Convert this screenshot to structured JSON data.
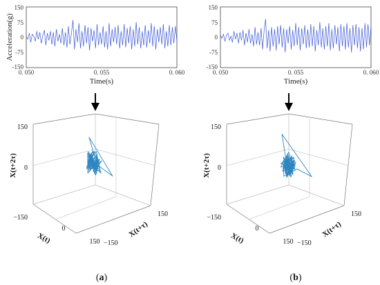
{
  "colors": {
    "series": "#3b57d6",
    "trajectory": "#2e86c1",
    "frame": "#555555",
    "grid": "#bbbbbb"
  },
  "panels": [
    {
      "caption_pre": "(",
      "caption_letter": "a",
      "caption_post": ")"
    },
    {
      "caption_pre": "(",
      "caption_letter": "b",
      "caption_post": ")"
    }
  ],
  "chart_data": [
    {
      "type": "line",
      "panel": "a",
      "ylabel": "Acceleration(g)",
      "xlabel": "Time(s)",
      "xlim": [
        0.05,
        0.06
      ],
      "ylim": [
        -150,
        150
      ],
      "xticks": [
        "0. 050",
        "0. 055",
        "0. 060"
      ],
      "yticks": [
        "150",
        "75",
        "0",
        "-75",
        "-150"
      ],
      "series": [
        {
          "x": [
            0.05,
            0.0501,
            0.0502,
            0.0503,
            0.0504,
            0.0505,
            0.0506,
            0.0507,
            0.0508,
            0.0509,
            0.051,
            0.0511,
            0.0512,
            0.0513,
            0.0514,
            0.0515,
            0.0516,
            0.0517,
            0.0518,
            0.0519,
            0.052,
            0.0521,
            0.0522,
            0.0523,
            0.0524,
            0.0525,
            0.0526,
            0.0527,
            0.0528,
            0.0529,
            0.053,
            0.0531,
            0.0532,
            0.0533,
            0.0534,
            0.0535,
            0.0536,
            0.0537,
            0.0538,
            0.0539,
            0.054,
            0.0541,
            0.0542,
            0.0543,
            0.0544,
            0.0545,
            0.0546,
            0.0547,
            0.0548,
            0.0549,
            0.055,
            0.0551,
            0.0552,
            0.0553,
            0.0554,
            0.0555,
            0.0556,
            0.0557,
            0.0558,
            0.0559,
            0.056,
            0.0561,
            0.0562,
            0.0563,
            0.0564,
            0.0565,
            0.0566,
            0.0567,
            0.0568,
            0.0569,
            0.057,
            0.0571,
            0.0572,
            0.0573,
            0.0574,
            0.0575,
            0.0576,
            0.0577,
            0.0578,
            0.0579,
            0.058,
            0.0581,
            0.0582,
            0.0583,
            0.0584,
            0.0585,
            0.0586,
            0.0587,
            0.0588,
            0.0589,
            0.059,
            0.0591,
            0.0592,
            0.0593,
            0.0594,
            0.0595,
            0.0596,
            0.0597,
            0.0598,
            0.0599,
            0.06
          ],
          "y": [
            5,
            -10,
            20,
            -25,
            15,
            5,
            -20,
            30,
            -10,
            25,
            -30,
            10,
            35,
            -40,
            20,
            -15,
            30,
            -35,
            25,
            -45,
            40,
            -20,
            15,
            -30,
            45,
            -40,
            25,
            -50,
            55,
            -35,
            20,
            85,
            -60,
            40,
            -25,
            70,
            -55,
            30,
            -45,
            60,
            -30,
            50,
            -65,
            45,
            -20,
            35,
            -55,
            65,
            -40,
            25,
            -35,
            55,
            -50,
            30,
            -60,
            70,
            -45,
            40,
            -25,
            50,
            -35,
            60,
            -55,
            30,
            -40,
            65,
            -50,
            45,
            -30,
            55,
            -60,
            40,
            -45,
            75,
            -35,
            50,
            -55,
            30,
            -40,
            60,
            -50,
            35,
            -30,
            70,
            -45,
            55,
            -60,
            40,
            -25,
            50,
            -35,
            65,
            -55,
            30,
            -45,
            60,
            -40,
            50,
            -30,
            55,
            -20
          ]
        }
      ]
    },
    {
      "type": "line",
      "panel": "b",
      "ylabel": "",
      "xlabel": "Time(s)",
      "xlim": [
        0.05,
        0.06
      ],
      "ylim": [
        -150,
        150
      ],
      "xticks": [
        "0. 050",
        "0. 055",
        "0. 060"
      ],
      "yticks": [
        "150",
        "75",
        "0",
        "-75",
        "-150"
      ],
      "series": [
        {
          "x": [
            0.05,
            0.0501,
            0.0502,
            0.0503,
            0.0504,
            0.0505,
            0.0506,
            0.0507,
            0.0508,
            0.0509,
            0.051,
            0.0511,
            0.0512,
            0.0513,
            0.0514,
            0.0515,
            0.0516,
            0.0517,
            0.0518,
            0.0519,
            0.052,
            0.0521,
            0.0522,
            0.0523,
            0.0524,
            0.0525,
            0.0526,
            0.0527,
            0.0528,
            0.0529,
            0.053,
            0.0531,
            0.0532,
            0.0533,
            0.0534,
            0.0535,
            0.0536,
            0.0537,
            0.0538,
            0.0539,
            0.054,
            0.0541,
            0.0542,
            0.0543,
            0.0544,
            0.0545,
            0.0546,
            0.0547,
            0.0548,
            0.0549,
            0.055,
            0.0551,
            0.0552,
            0.0553,
            0.0554,
            0.0555,
            0.0556,
            0.0557,
            0.0558,
            0.0559,
            0.056,
            0.0561,
            0.0562,
            0.0563,
            0.0564,
            0.0565,
            0.0566,
            0.0567,
            0.0568,
            0.0569,
            0.057,
            0.0571,
            0.0572,
            0.0573,
            0.0574,
            0.0575,
            0.0576,
            0.0577,
            0.0578,
            0.0579,
            0.058,
            0.0581,
            0.0582,
            0.0583,
            0.0584,
            0.0585,
            0.0586,
            0.0587,
            0.0588,
            0.0589,
            0.059,
            0.0591,
            0.0592,
            0.0593,
            0.0594,
            0.0595,
            0.0596,
            0.0597,
            0.0598,
            0.0599,
            0.06
          ],
          "y": [
            10,
            -5,
            15,
            -20,
            10,
            20,
            -15,
            5,
            -25,
            30,
            -10,
            20,
            -30,
            25,
            -15,
            35,
            -40,
            20,
            -25,
            40,
            -30,
            15,
            -45,
            50,
            -35,
            25,
            -40,
            45,
            -60,
            30,
            90,
            -55,
            35,
            -70,
            50,
            -45,
            40,
            -65,
            55,
            -35,
            60,
            -50,
            45,
            -75,
            40,
            -30,
            55,
            -60,
            35,
            -45,
            70,
            -40,
            50,
            -65,
            45,
            -35,
            60,
            -55,
            40,
            -50,
            65,
            -45,
            55,
            -70,
            35,
            -40,
            75,
            -50,
            45,
            -60,
            55,
            -45,
            70,
            -65,
            40,
            -55,
            60,
            -35,
            50,
            -70,
            65,
            -45,
            55,
            -60,
            70,
            -50,
            45,
            -75,
            60,
            -40,
            65,
            -55,
            50,
            -70,
            45,
            -60,
            70,
            -50,
            65,
            -40,
            55
          ]
        }
      ]
    },
    {
      "type": "line3d",
      "panel": "a",
      "xlabel": "X(t)",
      "ylabel": "X(t+τ)",
      "zlabel": "X(t+2τ)",
      "xlim": [
        -150,
        150
      ],
      "ylim": [
        -150,
        150
      ],
      "zlim": [
        -150,
        150
      ],
      "xticks": [
        "−150",
        "0",
        "150"
      ],
      "yticks": [
        "150",
        "−150"
      ],
      "zticks": [
        "150",
        "0",
        "−150"
      ],
      "delay_embedding_of": "panel a time series"
    },
    {
      "type": "line3d",
      "panel": "b",
      "xlabel": "X(t)",
      "ylabel": "X(t+τ)",
      "zlabel": "X(t+2τ)",
      "xlim": [
        -150,
        150
      ],
      "ylim": [
        -150,
        150
      ],
      "zlim": [
        -150,
        150
      ],
      "xticks": [
        "−150",
        "0",
        "150"
      ],
      "yticks": [
        "150",
        "−150"
      ],
      "zticks": [
        "150",
        "0",
        "−150"
      ],
      "delay_embedding_of": "panel b time series"
    }
  ]
}
